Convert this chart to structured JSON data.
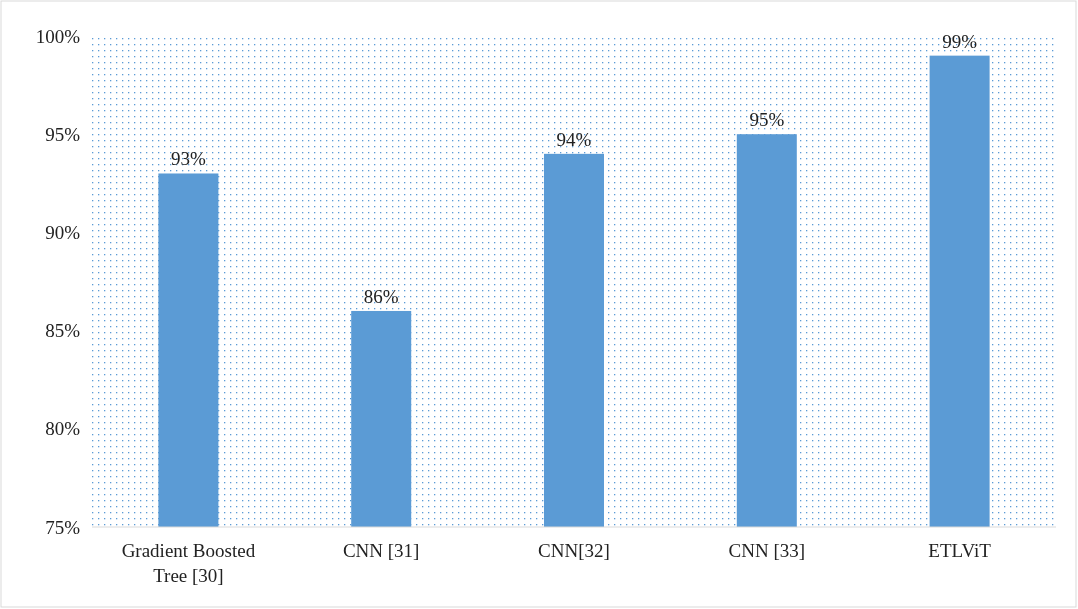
{
  "chart_data": {
    "type": "bar",
    "categories": [
      "Gradient Boosted Tree [30]",
      "CNN [31]",
      "CNN[32]",
      "CNN [33]",
      "ETLViT"
    ],
    "values": [
      93,
      86,
      94,
      95,
      99
    ],
    "value_labels": [
      "93%",
      "86%",
      "94%",
      "95%",
      "99%"
    ],
    "color": "#5b9bd5",
    "ylim": [
      75,
      100
    ],
    "yticks": [
      {
        "value": 75,
        "label": "75%"
      },
      {
        "value": 80,
        "label": "80%"
      },
      {
        "value": 85,
        "label": "85%"
      },
      {
        "value": 90,
        "label": "90%"
      },
      {
        "value": 95,
        "label": "95%"
      },
      {
        "value": 100,
        "label": "100%"
      }
    ],
    "grid": false
  }
}
